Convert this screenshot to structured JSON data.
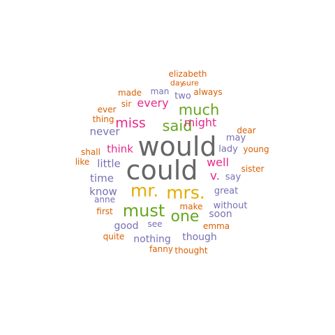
{
  "palette": {
    "orange": "#d95f02",
    "purple": "#7570b3",
    "magenta": "#e7298a",
    "green": "#66a61e",
    "gold": "#e6ab02",
    "gray": "#666666"
  },
  "words": [
    {
      "text": "would",
      "color": "gray"
    },
    {
      "text": "could",
      "color": "gray"
    },
    {
      "text": "mr.",
      "color": "gold"
    },
    {
      "text": "mrs.",
      "color": "gold"
    },
    {
      "text": "must",
      "color": "green"
    },
    {
      "text": "one",
      "color": "green"
    },
    {
      "text": "much",
      "color": "green"
    },
    {
      "text": "said",
      "color": "green"
    },
    {
      "text": "miss",
      "color": "magenta"
    },
    {
      "text": "every",
      "color": "magenta"
    },
    {
      "text": "might",
      "color": "magenta"
    },
    {
      "text": "well",
      "color": "magenta"
    },
    {
      "text": "v.",
      "color": "magenta"
    },
    {
      "text": "think",
      "color": "magenta"
    },
    {
      "text": "never",
      "color": "purple"
    },
    {
      "text": "little",
      "color": "purple"
    },
    {
      "text": "time",
      "color": "purple"
    },
    {
      "text": "know",
      "color": "purple"
    },
    {
      "text": "good",
      "color": "purple"
    },
    {
      "text": "nothing",
      "color": "purple"
    },
    {
      "text": "though",
      "color": "purple"
    },
    {
      "text": "soon",
      "color": "purple"
    },
    {
      "text": "without",
      "color": "purple"
    },
    {
      "text": "great",
      "color": "purple"
    },
    {
      "text": "say",
      "color": "purple"
    },
    {
      "text": "lady",
      "color": "purple"
    },
    {
      "text": "may",
      "color": "purple"
    },
    {
      "text": "see",
      "color": "purple"
    },
    {
      "text": "anne",
      "color": "purple"
    },
    {
      "text": "two",
      "color": "purple"
    },
    {
      "text": "man",
      "color": "purple"
    },
    {
      "text": "elizabeth",
      "color": "orange"
    },
    {
      "text": "day",
      "color": "orange"
    },
    {
      "text": "sure",
      "color": "orange"
    },
    {
      "text": "made",
      "color": "orange"
    },
    {
      "text": "always",
      "color": "orange"
    },
    {
      "text": "sir",
      "color": "orange"
    },
    {
      "text": "ever",
      "color": "orange"
    },
    {
      "text": "thing",
      "color": "orange"
    },
    {
      "text": "dear",
      "color": "orange"
    },
    {
      "text": "shall",
      "color": "orange"
    },
    {
      "text": "young",
      "color": "orange"
    },
    {
      "text": "like",
      "color": "orange"
    },
    {
      "text": "sister",
      "color": "orange"
    },
    {
      "text": "first",
      "color": "orange"
    },
    {
      "text": "make",
      "color": "orange"
    },
    {
      "text": "emma",
      "color": "orange"
    },
    {
      "text": "quite",
      "color": "orange"
    },
    {
      "text": "fanny",
      "color": "orange"
    },
    {
      "text": "thought",
      "color": "orange"
    }
  ]
}
